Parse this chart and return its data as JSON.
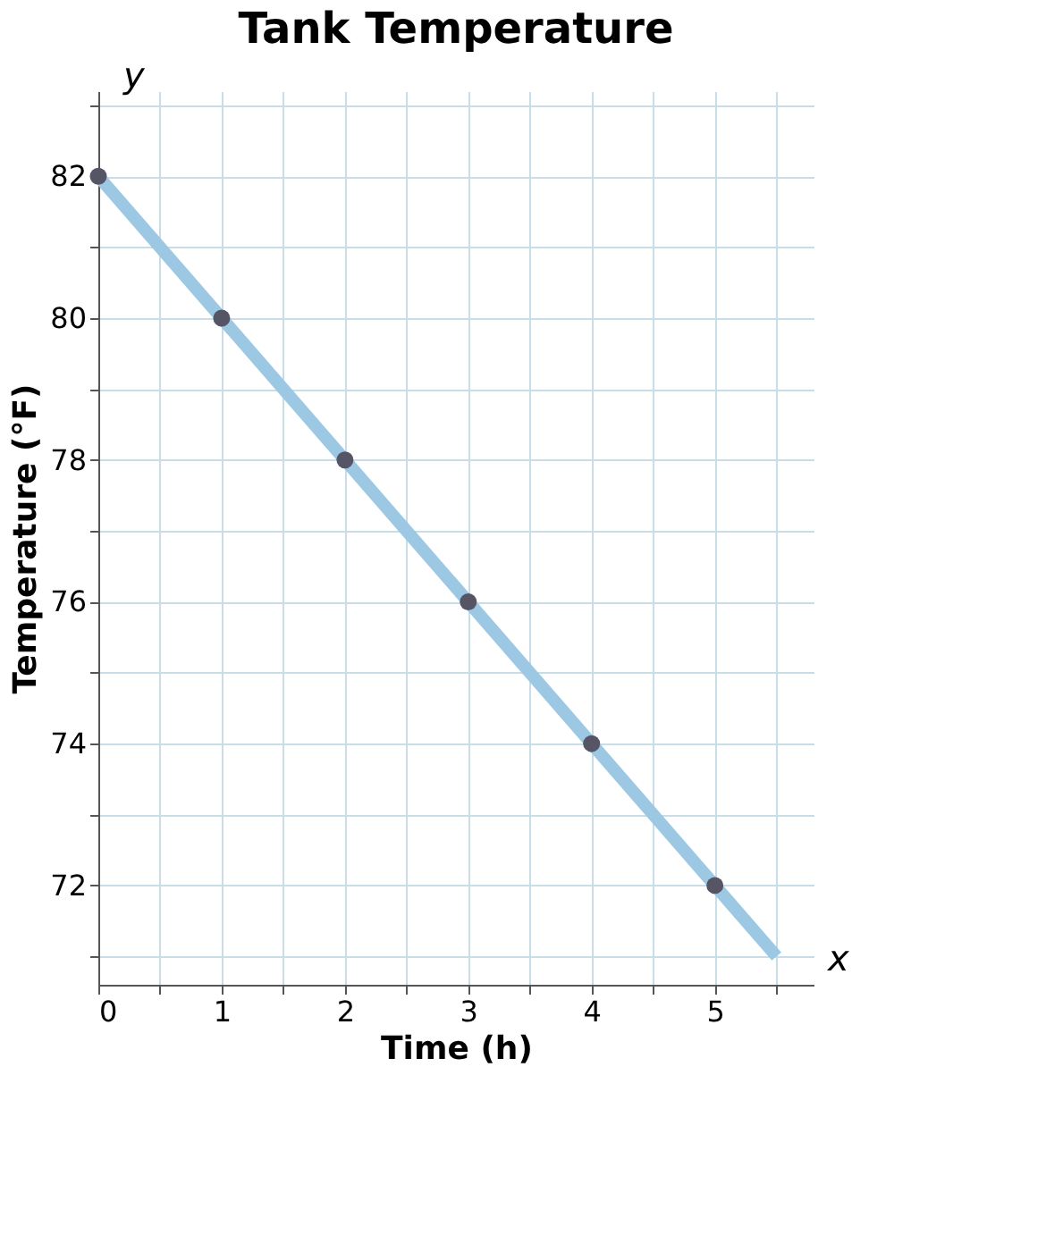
{
  "chart_data": {
    "type": "scatter",
    "title": "Tank Temperature",
    "xlabel": "Time (h)",
    "ylabel": "Temperature (°F)",
    "series": [
      {
        "type": "line",
        "marker": "none",
        "color": "#9cc8e4",
        "x": [
          0,
          5.5
        ],
        "values": [
          82,
          71
        ]
      },
      {
        "color": "#555566",
        "x": [
          0,
          1,
          2,
          3,
          4,
          5
        ],
        "values": [
          82,
          80,
          78,
          76,
          74,
          72
        ]
      }
    ],
    "xlim": [
      0,
      5.8
    ],
    "ylim": [
      70.6,
      83.2
    ],
    "xticks": [
      0,
      {
        "value": 0.5,
        "label": null
      },
      1,
      {
        "value": 1.5,
        "label": null
      },
      2,
      {
        "value": 2.5,
        "label": null
      },
      3,
      {
        "value": 3.5,
        "label": null
      },
      4,
      {
        "value": 4.5,
        "label": null
      },
      5,
      {
        "value": 5.5,
        "label": null
      }
    ],
    "yticks": [
      {
        "value": 71,
        "label": null
      },
      72,
      {
        "value": 73,
        "label": null
      },
      74,
      {
        "value": 75,
        "label": null
      },
      76,
      {
        "value": 77,
        "label": null
      },
      78,
      {
        "value": 79,
        "label": null
      },
      80,
      {
        "value": 81,
        "label": null
      },
      82,
      {
        "value": 83,
        "label": null
      }
    ],
    "grid": true,
    "marker": "circle",
    "line_style": "solid",
    "annotations": [
      "x",
      "y"
    ]
  }
}
